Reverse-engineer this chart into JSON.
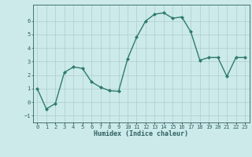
{
  "x": [
    0,
    1,
    2,
    3,
    4,
    5,
    6,
    7,
    8,
    9,
    10,
    11,
    12,
    13,
    14,
    15,
    16,
    17,
    18,
    19,
    20,
    21,
    22,
    23
  ],
  "y": [
    1.0,
    -0.5,
    -0.1,
    2.2,
    2.6,
    2.5,
    1.5,
    1.1,
    0.85,
    0.8,
    3.2,
    4.8,
    6.0,
    6.5,
    6.6,
    6.2,
    6.3,
    5.2,
    3.1,
    3.3,
    3.3,
    1.9,
    3.3,
    3.3
  ],
  "line_color": "#2e7b6e",
  "marker": "D",
  "marker_size": 2.0,
  "line_width": 1.0,
  "xlabel": "Humidex (Indice chaleur)",
  "xlim": [
    -0.5,
    23.5
  ],
  "ylim": [
    -1.5,
    7.2
  ],
  "yticks": [
    -1,
    0,
    1,
    2,
    3,
    4,
    5,
    6
  ],
  "xtick_labels": [
    "0",
    "1",
    "2",
    "3",
    "4",
    "5",
    "6",
    "7",
    "8",
    "9",
    "10",
    "11",
    "12",
    "13",
    "14",
    "15",
    "16",
    "17",
    "18",
    "19",
    "20",
    "21",
    "22",
    "23"
  ],
  "bg_color": "#cceaea",
  "grid_color": "#b0cccc",
  "font_color": "#2e6060",
  "tick_fontsize": 5.0,
  "xlabel_fontsize": 6.0
}
